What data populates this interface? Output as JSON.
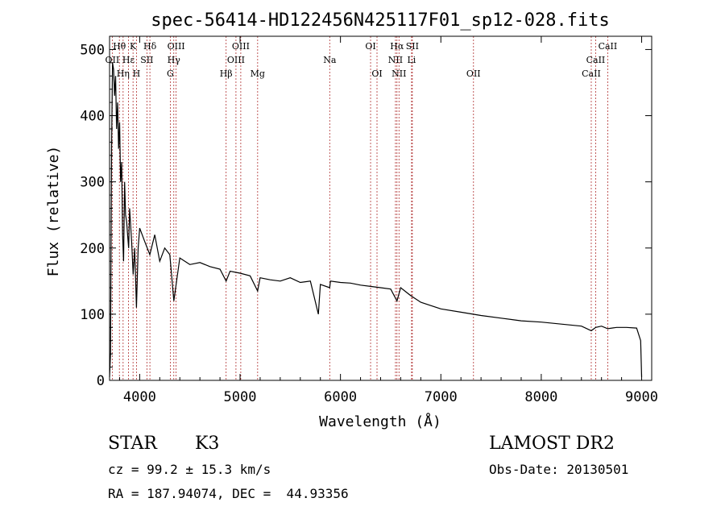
{
  "chart_data": {
    "type": "line",
    "title": "spec-56414-HD122456N425117F01_sp12-028.fits",
    "xlabel": "Wavelength (Å)",
    "ylabel": "Flux (relative)",
    "xlim": [
      3700,
      9100
    ],
    "ylim": [
      0,
      520
    ],
    "xticks": [
      4000,
      5000,
      6000,
      7000,
      8000,
      9000
    ],
    "yticks": [
      0,
      100,
      200,
      300,
      400,
      500
    ],
    "grid": false,
    "series": [
      {
        "color": "#000000",
        "x": [
          3700,
          3710,
          3720,
          3730,
          3740,
          3750,
          3760,
          3770,
          3780,
          3790,
          3800,
          3810,
          3820,
          3830,
          3840,
          3850,
          3860,
          3870,
          3880,
          3890,
          3900,
          3920,
          3935,
          3950,
          3968,
          3985,
          4000,
          4050,
          4101,
          4150,
          4200,
          4250,
          4300,
          4340,
          4400,
          4500,
          4600,
          4700,
          4800,
          4861,
          4900,
          5000,
          5100,
          5175,
          5200,
          5300,
          5400,
          5500,
          5600,
          5700,
          5780,
          5800,
          5893,
          5900,
          6000,
          6100,
          6200,
          6300,
          6400,
          6500,
          6563,
          6600,
          6700,
          6800,
          6900,
          7000,
          7200,
          7400,
          7600,
          7800,
          8000,
          8200,
          8400,
          8498,
          8542,
          8600,
          8662,
          8750,
          8850,
          8950,
          8990,
          9000
        ],
        "y": [
          5,
          40,
          350,
          480,
          470,
          430,
          460,
          380,
          420,
          350,
          390,
          300,
          330,
          220,
          180,
          300,
          250,
          240,
          220,
          200,
          260,
          210,
          160,
          200,
          110,
          200,
          230,
          210,
          190,
          220,
          180,
          200,
          190,
          120,
          185,
          175,
          178,
          172,
          168,
          150,
          165,
          162,
          158,
          135,
          155,
          152,
          150,
          155,
          148,
          150,
          100,
          145,
          140,
          150,
          148,
          147,
          144,
          142,
          140,
          138,
          120,
          140,
          128,
          118,
          113,
          108,
          103,
          98,
          94,
          90,
          88,
          85,
          82,
          75,
          80,
          82,
          78,
          80,
          80,
          79,
          60,
          5
        ]
      }
    ],
    "lines": [
      {
        "label": "Hθ",
        "x": 3798,
        "row": 1
      },
      {
        "label": "OII",
        "x": 3727,
        "row": 2
      },
      {
        "label": "Hε",
        "x": 3889,
        "row": 2
      },
      {
        "label": "Hη",
        "x": 3835,
        "row": 3
      },
      {
        "label": "K",
        "x": 3934,
        "row": 1
      },
      {
        "label": "SII",
        "x": 4072,
        "row": 2
      },
      {
        "label": "H",
        "x": 3968,
        "row": 3
      },
      {
        "label": "Hδ",
        "x": 4102,
        "row": 1
      },
      {
        "label": "OIII",
        "x": 4363,
        "row": 1
      },
      {
        "label": "Hγ",
        "x": 4340,
        "row": 2
      },
      {
        "label": "G",
        "x": 4305,
        "row": 3
      },
      {
        "label": "Hβ",
        "x": 4861,
        "row": 3
      },
      {
        "label": "OIII",
        "x": 5007,
        "row": 1
      },
      {
        "label": "OIII",
        "x": 4959,
        "row": 2
      },
      {
        "label": "Mg",
        "x": 5175,
        "row": 3
      },
      {
        "label": "Na",
        "x": 5893,
        "row": 2
      },
      {
        "label": "OI",
        "x": 6300,
        "row": 1
      },
      {
        "label": "OI",
        "x": 6364,
        "row": 3
      },
      {
        "label": "Hα",
        "x": 6563,
        "row": 1
      },
      {
        "label": "NII",
        "x": 6548,
        "row": 2
      },
      {
        "label": "NII",
        "x": 6583,
        "row": 3
      },
      {
        "label": "SII",
        "x": 6716,
        "row": 1
      },
      {
        "label": "Li",
        "x": 6708,
        "row": 2
      },
      {
        "label": "OII",
        "x": 7325,
        "row": 3
      },
      {
        "label": "CaII",
        "x": 8662,
        "row": 1
      },
      {
        "label": "CaII",
        "x": 8542,
        "row": 2
      },
      {
        "label": "CaII",
        "x": 8498,
        "row": 3
      }
    ]
  },
  "info": {
    "object_class": "STAR",
    "subclass": "K3",
    "survey": "LAMOST DR2",
    "redshift": "cz = 99.2 ± 15.3 km/s",
    "obs_date": "Obs-Date: 20130501",
    "coords": "RA = 187.94074, DEC =  44.93356"
  }
}
